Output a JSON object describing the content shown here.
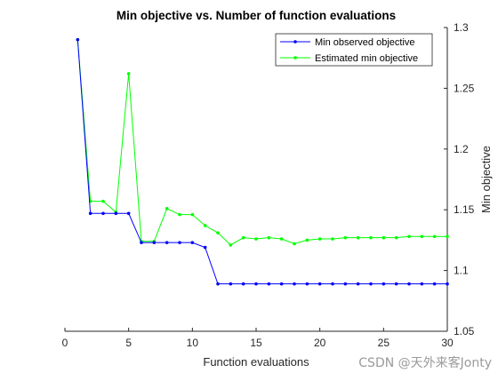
{
  "chart_data": {
    "type": "line",
    "title": "Min objective vs. Number of function evaluations",
    "xlabel": "Function evaluations",
    "ylabel": "Min objective",
    "xlim": [
      0,
      30
    ],
    "ylim": [
      1.05,
      1.3
    ],
    "x_ticks": [
      "0",
      "5",
      "10",
      "15",
      "20",
      "25",
      "30"
    ],
    "y_ticks": [
      "1.05",
      "1.1",
      "1.15",
      "1.2",
      "1.25",
      "1.3"
    ],
    "y_axis_position": "right",
    "grid": false,
    "legend_position": "top-right",
    "x": [
      1,
      2,
      3,
      4,
      5,
      6,
      7,
      8,
      9,
      10,
      11,
      12,
      13,
      14,
      15,
      16,
      17,
      18,
      19,
      20,
      21,
      22,
      23,
      24,
      25,
      26,
      27,
      28,
      29,
      30
    ],
    "series": [
      {
        "name": "Min observed objective",
        "color": "#0000ff",
        "values": [
          1.29,
          1.147,
          1.147,
          1.147,
          1.147,
          1.123,
          1.123,
          1.123,
          1.123,
          1.123,
          1.119,
          1.089,
          1.089,
          1.089,
          1.089,
          1.089,
          1.089,
          1.089,
          1.089,
          1.089,
          1.089,
          1.089,
          1.089,
          1.089,
          1.089,
          1.089,
          1.089,
          1.089,
          1.089,
          1.089
        ]
      },
      {
        "name": "Estimated min objective",
        "color": "#00ff00",
        "values": [
          1.29,
          1.157,
          1.157,
          1.148,
          1.262,
          1.124,
          1.124,
          1.151,
          1.146,
          1.146,
          1.137,
          1.131,
          1.121,
          1.127,
          1.126,
          1.127,
          1.126,
          1.122,
          1.125,
          1.126,
          1.126,
          1.127,
          1.127,
          1.127,
          1.127,
          1.127,
          1.128,
          1.128,
          1.128,
          1.128
        ]
      }
    ]
  },
  "watermark": "CSDN @天外来客Jonty"
}
